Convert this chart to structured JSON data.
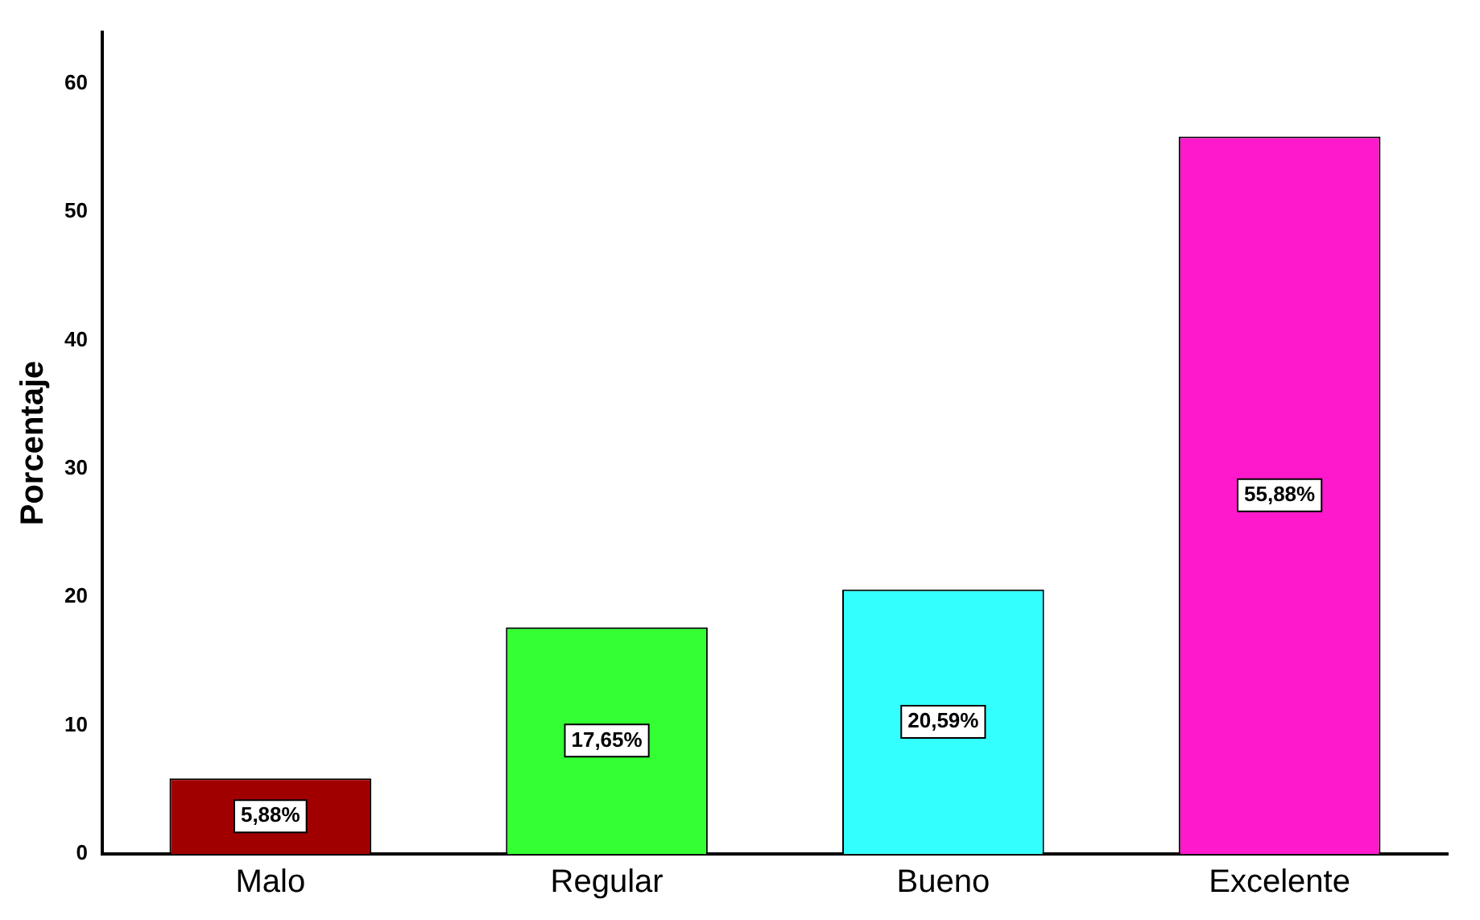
{
  "chart_data": {
    "type": "bar",
    "ylabel": "Porcentaje",
    "categories": [
      "Malo",
      "Regular",
      "Bueno",
      "Excelente"
    ],
    "values": [
      5.88,
      17.65,
      20.59,
      55.88
    ],
    "colors": [
      "#a00000",
      "#33ff33",
      "#33ffff",
      "#ff19cc"
    ],
    "value_labels": [
      "5,88%",
      "17,65%",
      "20,59%",
      "55,88%"
    ],
    "ylim": [
      0,
      64
    ],
    "yticks": [
      0,
      10,
      20,
      30,
      40,
      50,
      60
    ],
    "grid": false,
    "legend": false
  }
}
